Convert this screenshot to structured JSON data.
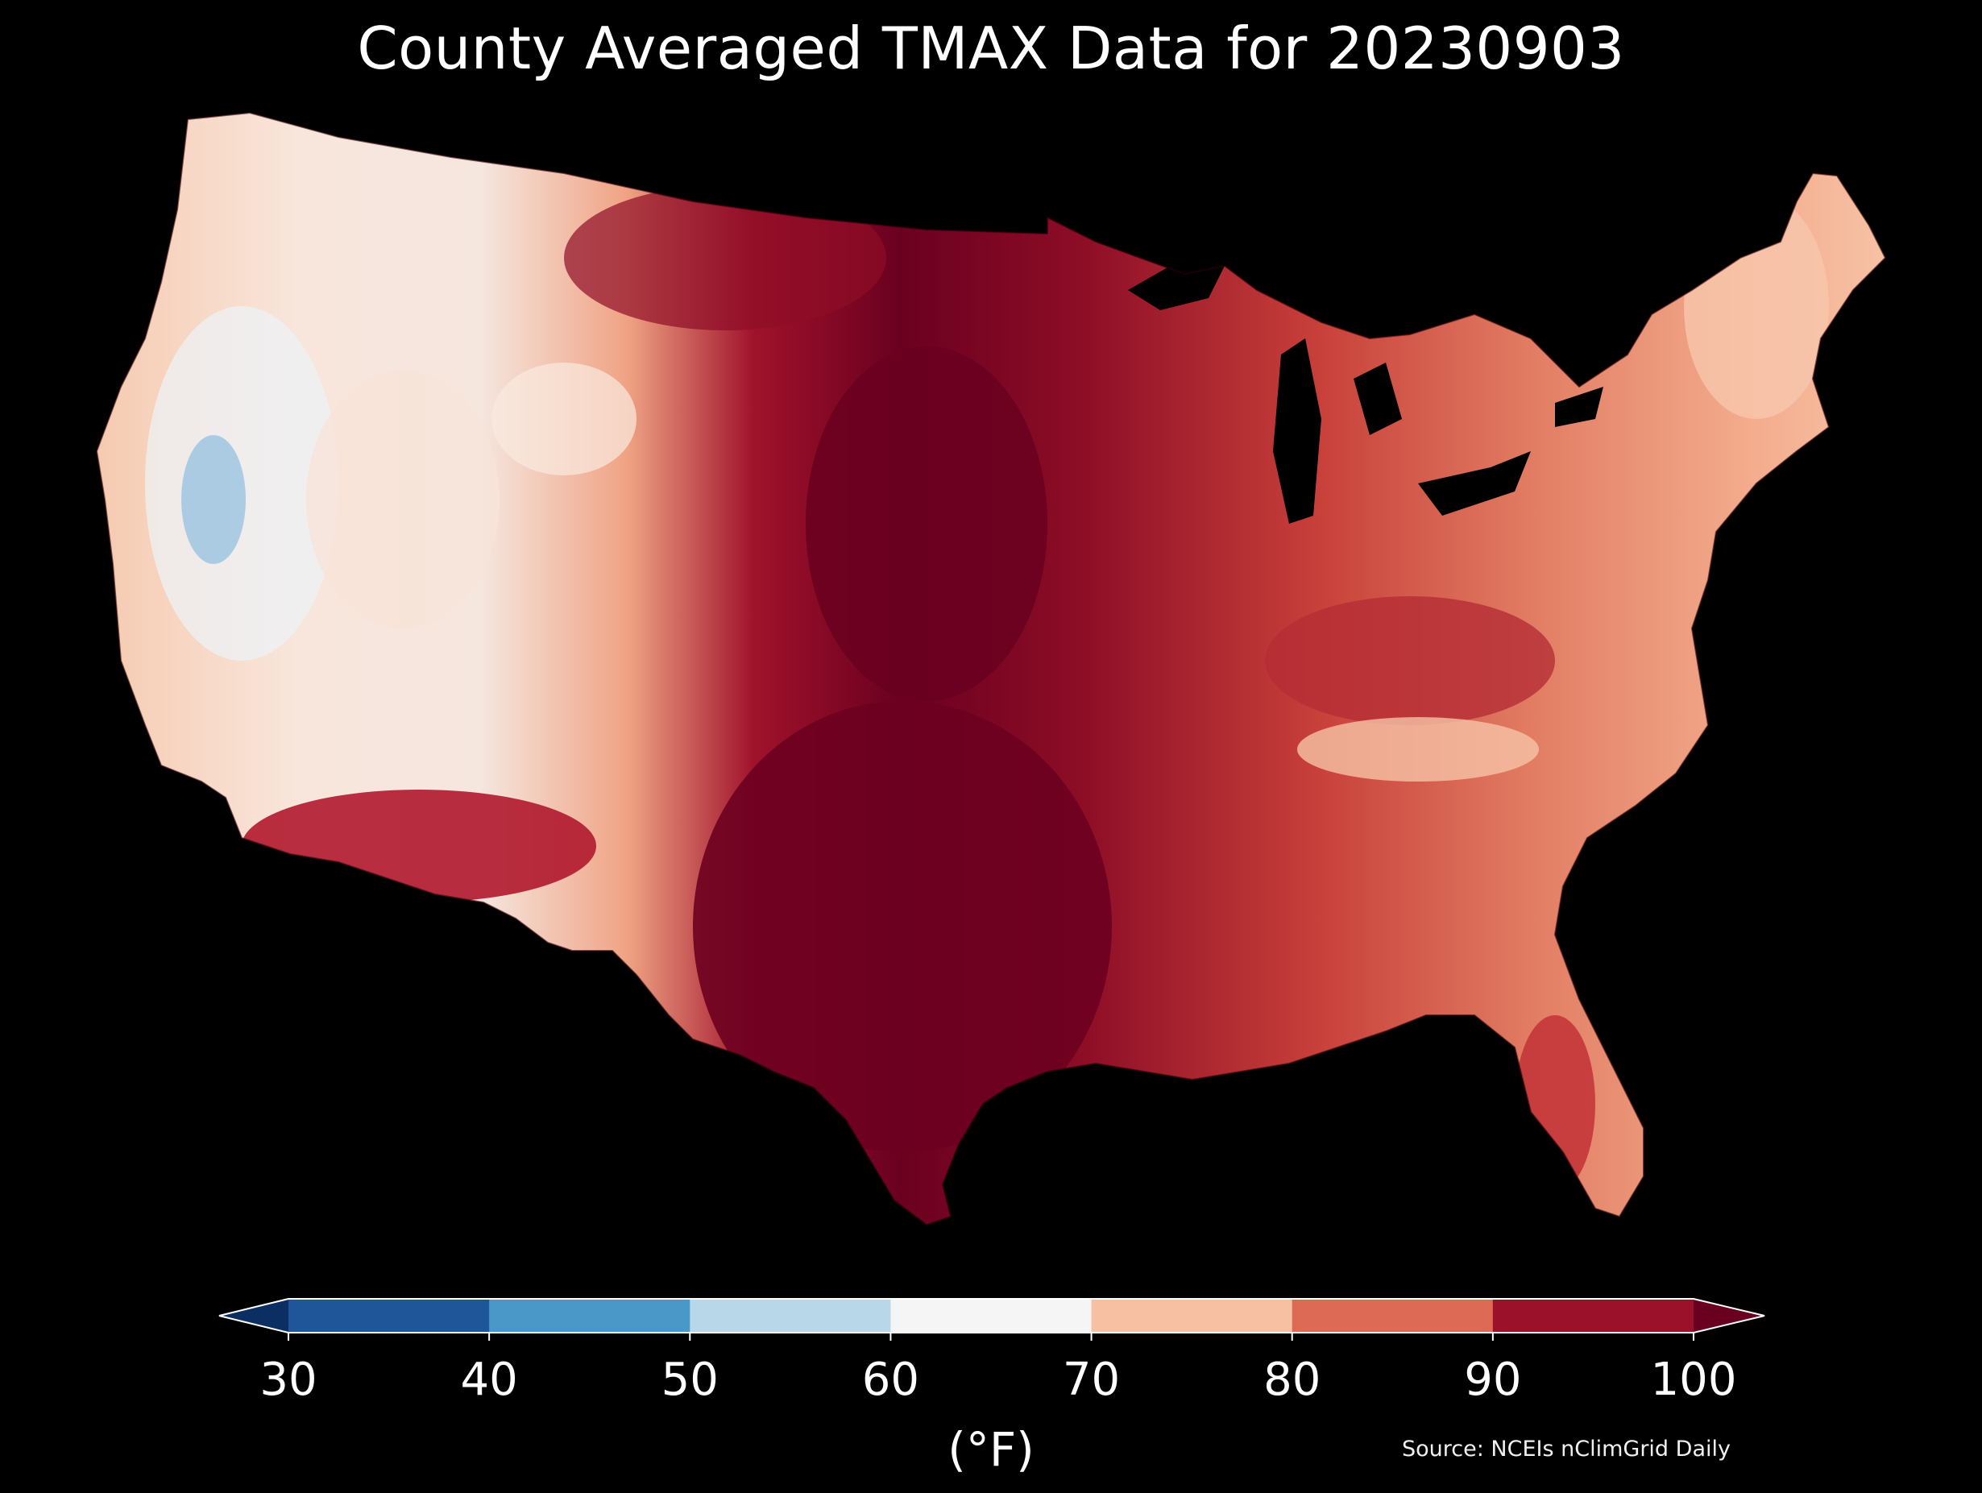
{
  "title": "County Averaged TMAX Data for 20230903",
  "colorbar": {
    "ticks": [
      "30",
      "40",
      "50",
      "60",
      "70",
      "80",
      "90",
      "100"
    ],
    "unit": "(°F)",
    "bins": [
      {
        "from": "<30",
        "color": "#0b2e63"
      },
      {
        "from": "30",
        "to": "40",
        "color": "#1f5699"
      },
      {
        "from": "40",
        "to": "50",
        "color": "#4a98c8"
      },
      {
        "from": "50",
        "to": "60",
        "color": "#b8d8ea"
      },
      {
        "from": "60",
        "to": "70",
        "color": "#f5f5f5"
      },
      {
        "from": "70",
        "to": "80",
        "color": "#f8c0a2"
      },
      {
        "from": "80",
        "to": "90",
        "color": "#dd6a55"
      },
      {
        "from": "90",
        "to": "100",
        "color": "#9a1129"
      },
      {
        "from": ">100",
        "color": "#6a0020"
      }
    ]
  },
  "source": "Source: NCEIs nClimGrid Daily"
}
